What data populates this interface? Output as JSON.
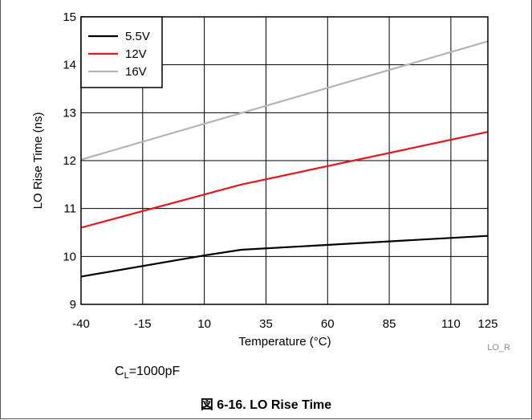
{
  "chart_data": {
    "type": "line",
    "ylabel": "LO Rise Time (ns)",
    "xlabel": "Temperature (°C)",
    "x_ticks": [
      "-40",
      "-15",
      "10",
      "35",
      "60",
      "85",
      "110",
      "125"
    ],
    "y_ticks": [
      "9",
      "10",
      "11",
      "12",
      "13",
      "14",
      "15"
    ],
    "xlim": [
      -40,
      125
    ],
    "ylim": [
      9,
      15
    ],
    "grid": true,
    "legend_position": "top-left",
    "series": [
      {
        "name": "5.5V",
        "color": "#000000",
        "x": [
          -40,
          10,
          25,
          125
        ],
        "y": [
          9.58,
          10.02,
          10.14,
          10.43
        ]
      },
      {
        "name": "12V",
        "color": "#e8141c",
        "x": [
          -40,
          25,
          125
        ],
        "y": [
          10.6,
          11.5,
          12.6
        ]
      },
      {
        "name": "16V",
        "color": "#b5b5b5",
        "x": [
          -40,
          125
        ],
        "y": [
          12.02,
          14.49
        ]
      }
    ],
    "plot_id": "LO_R"
  },
  "condition": {
    "prefix": "C",
    "subscript": "L",
    "suffix": "=1000pF"
  },
  "caption": "図 6-16. LO Rise Time"
}
